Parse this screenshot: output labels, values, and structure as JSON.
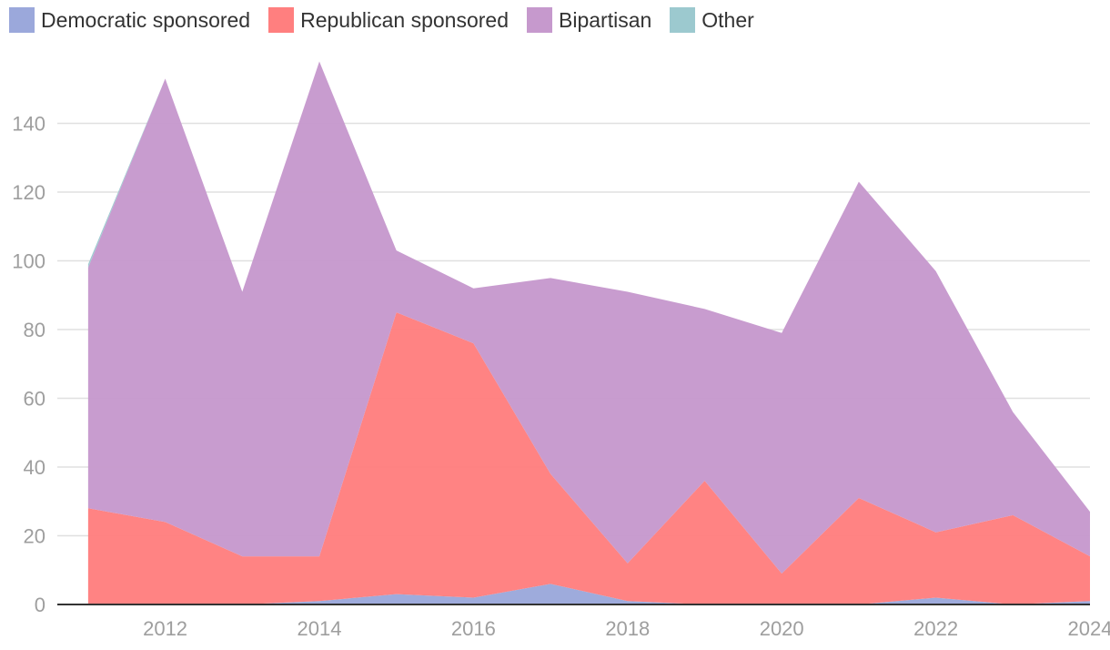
{
  "chart_data": {
    "type": "area",
    "stacked": true,
    "title": "",
    "xlabel": "",
    "ylabel": "",
    "x": [
      2011,
      2012,
      2013,
      2014,
      2015,
      2016,
      2017,
      2018,
      2019,
      2020,
      2021,
      2022,
      2023,
      2024
    ],
    "xlim": [
      2010.6,
      2024
    ],
    "ylim": [
      0,
      160
    ],
    "x_ticks": [
      "2012",
      "2014",
      "2016",
      "2018",
      "2020",
      "2022",
      "2024"
    ],
    "y_ticks": [
      "0",
      "20",
      "40",
      "60",
      "80",
      "100",
      "120",
      "140"
    ],
    "grid": "horizontal",
    "legend_position": "top-left",
    "series": [
      {
        "name": "Democratic sponsored",
        "color": "#9ba8db",
        "values": [
          0,
          0,
          0,
          1,
          3,
          2,
          6,
          1,
          0,
          0,
          0,
          2,
          0,
          1
        ]
      },
      {
        "name": "Republican sponsored",
        "color": "#ff7f7f",
        "values": [
          28,
          24,
          14,
          13,
          82,
          74,
          32,
          11,
          36,
          9,
          31,
          19,
          26,
          13
        ]
      },
      {
        "name": "Bipartisan",
        "color": "#c699cd",
        "values": [
          70,
          129,
          77,
          144,
          18,
          16,
          57,
          79,
          50,
          70,
          92,
          76,
          30,
          13
        ]
      },
      {
        "name": "Other",
        "color": "#9cc9cf",
        "values": [
          1,
          0,
          0,
          0,
          0,
          0,
          0,
          0,
          0,
          0,
          0,
          0,
          0,
          0
        ]
      }
    ]
  }
}
